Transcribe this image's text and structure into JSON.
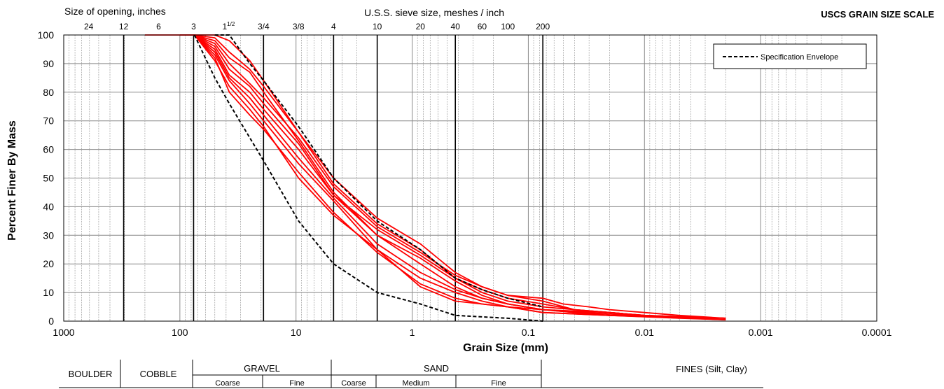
{
  "chart_data": {
    "type": "line",
    "title": "USCS GRAIN SIZE SCALE",
    "xlabel": "Grain Size (mm)",
    "ylabel": "Percent Finer By Mass",
    "x_scale": "log",
    "x_reversed": true,
    "xlim": [
      1000,
      0.0001
    ],
    "ylim": [
      0,
      100
    ],
    "grid": true,
    "x_tick_labels": [
      "1000",
      "100",
      "10",
      "1",
      "0.1",
      "0.01",
      "0.001",
      "0.0001"
    ],
    "y_tick_labels": [
      "0",
      "10",
      "20",
      "30",
      "40",
      "50",
      "60",
      "70",
      "80",
      "90",
      "100"
    ],
    "legend": {
      "placement": "top-right",
      "entries": [
        "Specification Envelope"
      ]
    },
    "top_axis": {
      "opening_title": "Size of opening, inches",
      "opening_labels": [
        {
          "text": "24",
          "mm": 609.6,
          "sup": ""
        },
        {
          "text": "12",
          "mm": 304.8,
          "sup": ""
        },
        {
          "text": "6",
          "mm": 152.4,
          "sup": ""
        },
        {
          "text": "3",
          "mm": 76.2,
          "sup": ""
        },
        {
          "text": "1",
          "mm": 38.1,
          "sup": "1/2"
        },
        {
          "text": "3/4",
          "mm": 19.05,
          "sup": ""
        },
        {
          "text": "3/8",
          "mm": 9.525,
          "sup": ""
        }
      ],
      "sieve_title": "U.S.S. sieve size, meshes / inch",
      "sieve_labels": [
        {
          "text": "4",
          "mm": 4.75
        },
        {
          "text": "10",
          "mm": 2.0
        },
        {
          "text": "20",
          "mm": 0.85
        },
        {
          "text": "40",
          "mm": 0.425
        },
        {
          "text": "60",
          "mm": 0.25
        },
        {
          "text": "100",
          "mm": 0.15
        },
        {
          "text": "200",
          "mm": 0.075
        }
      ]
    },
    "classification": {
      "boulder": "BOULDER",
      "cobble": "COBBLE",
      "gravel": "GRAVEL",
      "gravel_coarse": "Coarse",
      "gravel_fine": "Fine",
      "sand": "SAND",
      "sand_coarse": "Coarse",
      "sand_medium": "Medium",
      "sand_fine": "Fine",
      "fines": "FINES (Silt, Clay)"
    },
    "envelope": {
      "name": "Specification Envelope",
      "color": "#000000",
      "upper": [
        [
          50,
          100
        ],
        [
          37.5,
          100
        ],
        [
          25,
          90
        ],
        [
          19,
          84
        ],
        [
          9.5,
          68
        ],
        [
          4.75,
          50
        ],
        [
          2,
          35
        ],
        [
          0.85,
          25
        ],
        [
          0.425,
          15
        ],
        [
          0.25,
          11
        ],
        [
          0.15,
          8
        ],
        [
          0.075,
          5
        ]
      ],
      "lower": [
        [
          75,
          100
        ],
        [
          50,
          85
        ],
        [
          37.5,
          76
        ],
        [
          19,
          56
        ],
        [
          9.5,
          35
        ],
        [
          4.75,
          20
        ],
        [
          2,
          10
        ],
        [
          0.85,
          6
        ],
        [
          0.425,
          2
        ],
        [
          0.25,
          1.5
        ],
        [
          0.15,
          1
        ],
        [
          0.075,
          0
        ]
      ]
    },
    "series_color": "#ff0000",
    "series": [
      {
        "values": [
          [
            100,
            100
          ],
          [
            75,
            100
          ],
          [
            50,
            100
          ],
          [
            37.5,
            98
          ],
          [
            25,
            91
          ],
          [
            19,
            84
          ],
          [
            9.5,
            66
          ],
          [
            4.75,
            50
          ],
          [
            2,
            36
          ],
          [
            0.85,
            27
          ],
          [
            0.425,
            17
          ],
          [
            0.25,
            12
          ],
          [
            0.15,
            9
          ],
          [
            0.075,
            7
          ],
          [
            0.04,
            4
          ],
          [
            0.02,
            3
          ],
          [
            0.01,
            2
          ],
          [
            0.005,
            1
          ],
          [
            0.002,
            0.5
          ]
        ]
      },
      {
        "values": [
          [
            75,
            100
          ],
          [
            50,
            99
          ],
          [
            37.5,
            94
          ],
          [
            25,
            88
          ],
          [
            19,
            82
          ],
          [
            9.5,
            66
          ],
          [
            4.75,
            48
          ],
          [
            2,
            34
          ],
          [
            0.85,
            25
          ],
          [
            0.425,
            15
          ],
          [
            0.25,
            10
          ],
          [
            0.15,
            7
          ],
          [
            0.075,
            5
          ],
          [
            0.04,
            4
          ],
          [
            0.02,
            3
          ],
          [
            0.01,
            2
          ],
          [
            0.005,
            1.5
          ],
          [
            0.002,
            1
          ]
        ]
      },
      {
        "values": [
          [
            75,
            100
          ],
          [
            50,
            98
          ],
          [
            37.5,
            92
          ],
          [
            25,
            87
          ],
          [
            19,
            80
          ],
          [
            9.5,
            63
          ],
          [
            4.75,
            45
          ],
          [
            2,
            30
          ],
          [
            0.85,
            22
          ],
          [
            0.425,
            14
          ],
          [
            0.25,
            9
          ],
          [
            0.15,
            6
          ],
          [
            0.075,
            4
          ],
          [
            0.04,
            3
          ],
          [
            0.02,
            2
          ],
          [
            0.01,
            1.5
          ],
          [
            0.005,
            1
          ]
        ]
      },
      {
        "values": [
          [
            75,
            100
          ],
          [
            50,
            97
          ],
          [
            37.5,
            90
          ],
          [
            25,
            83
          ],
          [
            19,
            78
          ],
          [
            9.5,
            64
          ],
          [
            4.75,
            47
          ],
          [
            2,
            33
          ],
          [
            0.85,
            24
          ],
          [
            0.425,
            16
          ],
          [
            0.25,
            12
          ],
          [
            0.15,
            9
          ],
          [
            0.075,
            8
          ],
          [
            0.05,
            6
          ],
          [
            0.03,
            5
          ],
          [
            0.02,
            4
          ],
          [
            0.01,
            3
          ],
          [
            0.005,
            2
          ],
          [
            0.002,
            1
          ]
        ]
      },
      {
        "values": [
          [
            75,
            100
          ],
          [
            50,
            96
          ],
          [
            37.5,
            88
          ],
          [
            25,
            82
          ],
          [
            19,
            76
          ],
          [
            9.5,
            62
          ],
          [
            4.75,
            44
          ],
          [
            2,
            32
          ],
          [
            0.85,
            23
          ],
          [
            0.425,
            15
          ],
          [
            0.25,
            11
          ],
          [
            0.15,
            8
          ],
          [
            0.075,
            6
          ],
          [
            0.04,
            4
          ],
          [
            0.02,
            3
          ],
          [
            0.01,
            2
          ],
          [
            0.002,
            1
          ]
        ]
      },
      {
        "values": [
          [
            75,
            100
          ],
          [
            50,
            95
          ],
          [
            37.5,
            86
          ],
          [
            25,
            80
          ],
          [
            19,
            74
          ],
          [
            9.5,
            60
          ],
          [
            4.75,
            44
          ],
          [
            2,
            30
          ],
          [
            0.85,
            20
          ],
          [
            0.425,
            12
          ],
          [
            0.25,
            8
          ],
          [
            0.15,
            6
          ],
          [
            0.075,
            4
          ],
          [
            0.02,
            3
          ],
          [
            0.01,
            2
          ],
          [
            0.002,
            1
          ]
        ]
      },
      {
        "values": [
          [
            75,
            100
          ],
          [
            50,
            93
          ],
          [
            37.5,
            84
          ],
          [
            25,
            76
          ],
          [
            19,
            70
          ],
          [
            9.5,
            55
          ],
          [
            4.75,
            42
          ],
          [
            2,
            25
          ],
          [
            0.85,
            15
          ],
          [
            0.425,
            10
          ],
          [
            0.25,
            7
          ],
          [
            0.15,
            5
          ],
          [
            0.075,
            3
          ],
          [
            0.02,
            2
          ],
          [
            0.002,
            1
          ]
        ]
      },
      {
        "values": [
          [
            75,
            100
          ],
          [
            50,
            94
          ],
          [
            37.5,
            85
          ],
          [
            25,
            78
          ],
          [
            19,
            72
          ],
          [
            9.5,
            57
          ],
          [
            4.75,
            43
          ],
          [
            2,
            27
          ],
          [
            0.85,
            17
          ],
          [
            0.425,
            11
          ],
          [
            0.25,
            8
          ],
          [
            0.15,
            6
          ],
          [
            0.075,
            4
          ],
          [
            0.02,
            2.5
          ],
          [
            0.002,
            0.5
          ]
        ]
      },
      {
        "values": [
          [
            75,
            100
          ],
          [
            50,
            92
          ],
          [
            37.5,
            80
          ],
          [
            25,
            72
          ],
          [
            19,
            67
          ],
          [
            9.5,
            52
          ],
          [
            4.75,
            38
          ],
          [
            2,
            24
          ],
          [
            0.85,
            13
          ],
          [
            0.425,
            8
          ],
          [
            0.25,
            6
          ],
          [
            0.15,
            5
          ],
          [
            0.075,
            3
          ],
          [
            0.02,
            2
          ],
          [
            0.002,
            1
          ]
        ]
      },
      {
        "values": [
          [
            75,
            100
          ],
          [
            50,
            91
          ],
          [
            37.5,
            82
          ],
          [
            25,
            74
          ],
          [
            19,
            68
          ],
          [
            9.5,
            50
          ],
          [
            4.75,
            37
          ],
          [
            2,
            25
          ],
          [
            0.85,
            12
          ],
          [
            0.425,
            7
          ],
          [
            0.25,
            6
          ],
          [
            0.15,
            5
          ],
          [
            0.075,
            4
          ],
          [
            0.02,
            2
          ],
          [
            0.002,
            0.5
          ]
        ]
      }
    ]
  }
}
